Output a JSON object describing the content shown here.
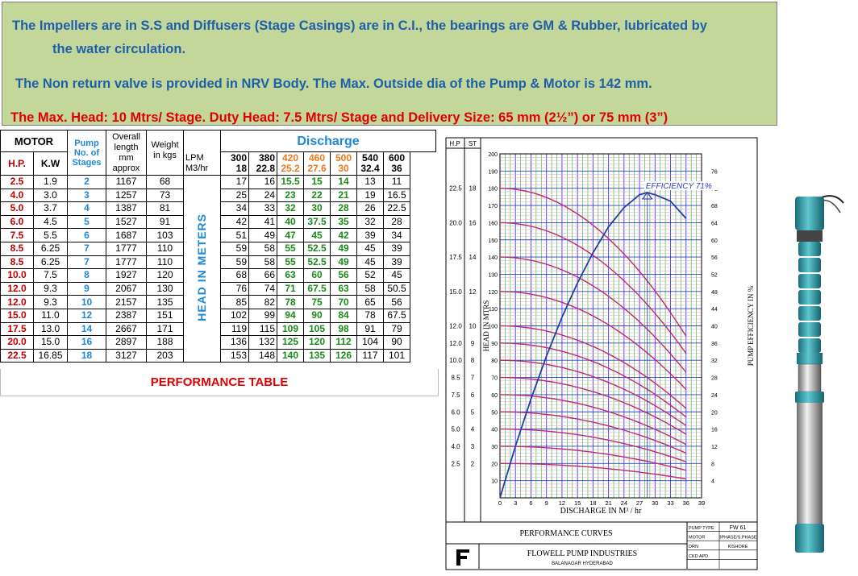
{
  "banner": {
    "line1": "The Impellers are in S.S and Diffusers (Stage Casings) are in C.I., the bearings are GM & Rubber, lubricated by",
    "line2": "the water circulation.",
    "line3": "The Non return valve is provided in NRV Body.  The Max.  Outside dia of the Pump & Motor is 142 mm.",
    "line4": "The Max. Head: 10 Mtrs/ Stage. Duty Head: 7.5 Mtrs/ Stage and Delivery Size:  65 mm (2½”) or 75 mm (3”)"
  },
  "table": {
    "motor": "MOTOR",
    "hp": "H.P.",
    "kw": "K.W",
    "pump_stages": "Pump No. of Stages",
    "overall_length": "Overall length mm approx",
    "weight": "Weight in kgs",
    "discharge": "Discharge",
    "lpm": "LPM",
    "m3hr": "M3/hr",
    "lpm_values": [
      "300",
      "380",
      "420",
      "460",
      "500",
      "540",
      "600"
    ],
    "m3_values": [
      "18",
      "22.8",
      "25.2",
      "27.6",
      "30",
      "32.4",
      "36"
    ],
    "head_label": "HEAD IN METERS",
    "caption": "PERFORMANCE TABLE",
    "rows": [
      {
        "hp": "2.5",
        "kw": "1.9",
        "stg": "2",
        "len": "1167",
        "wt": "68",
        "h": [
          "17",
          "16",
          "15.5",
          "15",
          "14",
          "13",
          "11"
        ]
      },
      {
        "hp": "4.0",
        "kw": "3.0",
        "stg": "3",
        "len": "1257",
        "wt": "73",
        "h": [
          "25",
          "24",
          "23",
          "22",
          "21",
          "19",
          "16.5"
        ]
      },
      {
        "hp": "5.0",
        "kw": "3.7",
        "stg": "4",
        "len": "1387",
        "wt": "81",
        "h": [
          "34",
          "33",
          "32",
          "30",
          "28",
          "26",
          "22.5"
        ]
      },
      {
        "hp": "6.0",
        "kw": "4.5",
        "stg": "5",
        "len": "1527",
        "wt": "91",
        "h": [
          "42",
          "41",
          "40",
          "37.5",
          "35",
          "32",
          "28"
        ]
      },
      {
        "hp": "7.5",
        "kw": "5.5",
        "stg": "6",
        "len": "1687",
        "wt": "103",
        "h": [
          "51",
          "49",
          "47",
          "45",
          "42",
          "39",
          "34"
        ]
      },
      {
        "hp": "8.5",
        "kw": "6.25",
        "stg": "7",
        "len": "1777",
        "wt": "110",
        "h": [
          "59",
          "58",
          "55",
          "52.5",
          "49",
          "45",
          "39"
        ]
      },
      {
        "hp": "8.5",
        "kw": "6.25",
        "stg": "7",
        "len": "1777",
        "wt": "110",
        "h": [
          "59",
          "58",
          "55",
          "52.5",
          "49",
          "45",
          "39"
        ]
      },
      {
        "hp": "10.0",
        "kw": "7.5",
        "stg": "8",
        "len": "1927",
        "wt": "120",
        "h": [
          "68",
          "66",
          "63",
          "60",
          "56",
          "52",
          "45"
        ]
      },
      {
        "hp": "12.0",
        "kw": "9.3",
        "stg": "9",
        "len": "2067",
        "wt": "130",
        "h": [
          "76",
          "74",
          "71",
          "67.5",
          "63",
          "58",
          "50.5"
        ]
      },
      {
        "hp": "12.0",
        "kw": "9.3",
        "stg": "10",
        "len": "2157",
        "wt": "135",
        "h": [
          "85",
          "82",
          "78",
          "75",
          "70",
          "65",
          "56"
        ]
      },
      {
        "hp": "15.0",
        "kw": "11.0",
        "stg": "12",
        "len": "2387",
        "wt": "151",
        "h": [
          "102",
          "99",
          "94",
          "90",
          "84",
          "78",
          "67.5"
        ]
      },
      {
        "hp": "17.5",
        "kw": "13.0",
        "stg": "14",
        "len": "2667",
        "wt": "171",
        "h": [
          "119",
          "115",
          "109",
          "105",
          "98",
          "91",
          "79"
        ]
      },
      {
        "hp": "20.0",
        "kw": "15.0",
        "stg": "16",
        "len": "2897",
        "wt": "188",
        "h": [
          "136",
          "132",
          "125",
          "120",
          "112",
          "104",
          "90"
        ]
      },
      {
        "hp": "22.5",
        "kw": "16.85",
        "stg": "18",
        "len": "3127",
        "wt": "203",
        "h": [
          "153",
          "148",
          "140",
          "135",
          "126",
          "117",
          "101"
        ]
      }
    ]
  },
  "chart_data": {
    "type": "line",
    "xlabel": "DISCHARGE IN M³ / hr",
    "ylabel": "HEAD IN MTRS",
    "y2label": "PUMP EFFICIENCY IN %",
    "xlim": [
      0,
      39
    ],
    "ylim": [
      0,
      200
    ],
    "y2lim": [
      0,
      80
    ],
    "x_ticks": [
      "0",
      "3",
      "6",
      "9",
      "12",
      "15",
      "18",
      "21",
      "24",
      "27",
      "30",
      "33",
      "36",
      "39"
    ],
    "y_ticks": [
      "10",
      "20",
      "30",
      "40",
      "50",
      "60",
      "70",
      "80",
      "90",
      "100",
      "110",
      "120",
      "130",
      "140",
      "150",
      "160",
      "170",
      "180",
      "190",
      "200"
    ],
    "y2_ticks": [
      "4",
      "8",
      "12",
      "16",
      "20",
      "24",
      "28",
      "32",
      "36",
      "40",
      "44",
      "48",
      "52",
      "56",
      "60",
      "64",
      "68",
      "72",
      "76"
    ],
    "hp_header": "H.P",
    "st_header": "ST",
    "hp_stage_labels": [
      {
        "hp": "22.5",
        "st": "18",
        "y": 180
      },
      {
        "hp": "20.0",
        "st": "16",
        "y": 160
      },
      {
        "hp": "17.5",
        "st": "14",
        "y": 140
      },
      {
        "hp": "15.0",
        "st": "12",
        "y": 120
      },
      {
        "hp": "12.0",
        "st": "10",
        "y": 100
      },
      {
        "hp": "12.0",
        "st": "9",
        "y": 90
      },
      {
        "hp": "10.0",
        "st": "8",
        "y": 80
      },
      {
        "hp": "8.5",
        "st": "7",
        "y": 70
      },
      {
        "hp": "7.5",
        "st": "6",
        "y": 60
      },
      {
        "hp": "6.0",
        "st": "5",
        "y": 50
      },
      {
        "hp": "5.0",
        "st": "4",
        "y": 40
      },
      {
        "hp": "4.0",
        "st": "3",
        "y": 30
      },
      {
        "hp": "2.5",
        "st": "2",
        "y": 20
      }
    ],
    "head_curves": [
      {
        "shutoff": 180,
        "end": 94
      },
      {
        "shutoff": 160,
        "end": 84
      },
      {
        "shutoff": 140,
        "end": 73
      },
      {
        "shutoff": 120,
        "end": 63
      },
      {
        "shutoff": 100,
        "end": 52
      },
      {
        "shutoff": 90,
        "end": 47
      },
      {
        "shutoff": 80,
        "end": 42
      },
      {
        "shutoff": 70,
        "end": 37
      },
      {
        "shutoff": 60,
        "end": 31
      },
      {
        "shutoff": 50,
        "end": 26
      },
      {
        "shutoff": 40,
        "end": 21
      },
      {
        "shutoff": 30,
        "end": 16
      },
      {
        "shutoff": 20,
        "end": 11
      }
    ],
    "efficiency_curve": {
      "name": "EFFICIENCY 71%",
      "x": [
        0,
        3,
        6,
        9,
        12,
        15,
        18,
        21,
        24,
        27,
        28.5,
        30,
        33,
        36
      ],
      "y": [
        0,
        12,
        23,
        33,
        42,
        50,
        57,
        63,
        67.5,
        70.5,
        71,
        70.5,
        69,
        65
      ]
    },
    "peak_label": "EFFICIENCY 71%"
  },
  "title_block": {
    "title": "PERFORMANCE CURVES",
    "company": "FLOWELL PUMP INDUSTRIES",
    "address": "BALANAGAR HYDERABAD",
    "pump_type_label": "PUMP TYPE",
    "pump_type": "FW 61",
    "motor_label": "MOTOR",
    "motor": "3PHASE/S.PHASE",
    "drn_label": "DRN",
    "drn": "KISHORE",
    "ckd_label": "CKD",
    "apd_label": "APD"
  },
  "colors": {
    "banner_bg": "#c4d79b",
    "blue_text": "#1f5fa8",
    "red_text": "#e00000",
    "grid_green": "#3ec43e",
    "grid_blue": "#3a3ae0",
    "curve_magenta": "#c0287a",
    "eff_blue": "#1f3fa8"
  }
}
